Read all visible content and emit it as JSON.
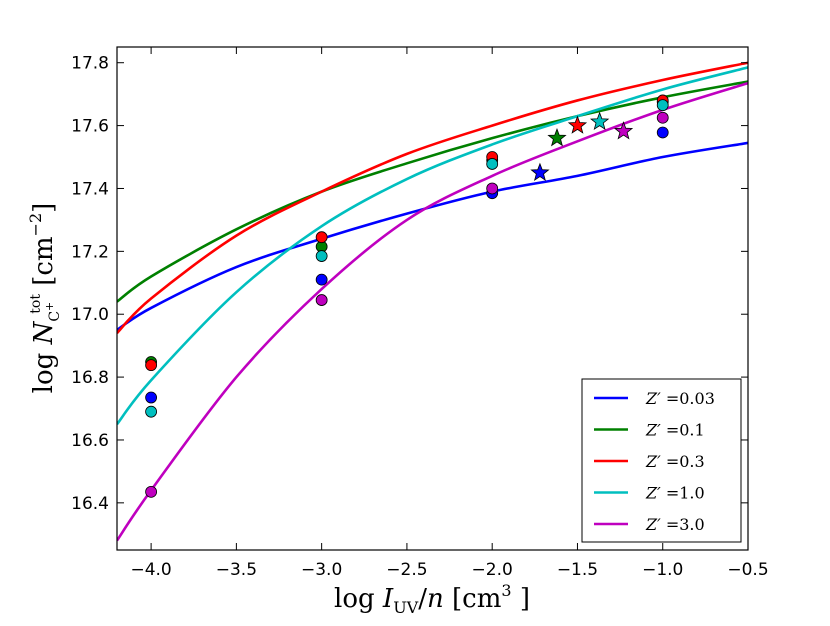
{
  "chart_data": {
    "type": "line",
    "title": "",
    "xlabel": "log I_UV/n [cm^3 ]",
    "ylabel": "log N_C+^tot [cm^-2]",
    "xlabel_parts": {
      "prefix": "log ",
      "var": "I",
      "sub": "UV",
      "mid": "/",
      "var2": "n",
      "unit": " [cm",
      "sup": "3",
      "close": " ]"
    },
    "ylabel_parts": {
      "prefix": "log ",
      "var": "N",
      "sub": "C",
      "subsup": "+",
      "sup": "tot",
      "unit": " [cm",
      "unitsup": "−2",
      "close": "]"
    },
    "xlim": [
      -4.2,
      -0.5
    ],
    "ylim": [
      16.25,
      17.85
    ],
    "x_ticks": [
      -4.0,
      -3.5,
      -3.0,
      -2.5,
      -2.0,
      -1.5,
      -1.0,
      -0.5
    ],
    "x_tick_labels": [
      "−4.0",
      "−3.5",
      "−3.0",
      "−2.5",
      "−2.0",
      "−1.5",
      "−1.0",
      "−0.5"
    ],
    "y_ticks": [
      16.4,
      16.6,
      16.8,
      17.0,
      17.2,
      17.4,
      17.6,
      17.8
    ],
    "y_tick_labels": [
      "16.4",
      "16.6",
      "16.8",
      "17.0",
      "17.2",
      "17.4",
      "17.6",
      "17.8"
    ],
    "grid": false,
    "legend_position": "lower-right",
    "legend_var": "Z′",
    "series": [
      {
        "name": "Z′ =0.03",
        "legend_value": "=0.03",
        "color": "#0000ff",
        "curve_x": [
          -4.2,
          -4.0,
          -3.5,
          -3.0,
          -2.5,
          -2.0,
          -1.5,
          -1.0,
          -0.5
        ],
        "curve_y": [
          16.95,
          17.02,
          17.15,
          17.24,
          17.32,
          17.39,
          17.44,
          17.5,
          17.545
        ],
        "points_x": [
          -4.0,
          -3.0,
          -2.0,
          -1.0
        ],
        "points_y": [
          16.735,
          17.11,
          17.385,
          17.578
        ],
        "star": {
          "x": -1.72,
          "y": 17.45
        }
      },
      {
        "name": "Z′ =0.1",
        "legend_value": "=0.1",
        "color": "#008000",
        "curve_x": [
          -4.2,
          -4.0,
          -3.5,
          -3.0,
          -2.5,
          -2.0,
          -1.5,
          -1.0,
          -0.5
        ],
        "curve_y": [
          17.04,
          17.12,
          17.27,
          17.39,
          17.48,
          17.56,
          17.63,
          17.69,
          17.74
        ],
        "points_x": [
          -4.0,
          -3.0,
          -2.0,
          -1.0
        ],
        "points_y": [
          16.848,
          17.215,
          17.49,
          17.675
        ],
        "star": {
          "x": -1.62,
          "y": 17.56
        }
      },
      {
        "name": "Z′ =0.3",
        "legend_value": "=0.3",
        "color": "#ff0000",
        "curve_x": [
          -4.2,
          -4.0,
          -3.5,
          -3.0,
          -2.5,
          -2.0,
          -1.5,
          -1.0,
          -0.5
        ],
        "curve_y": [
          16.94,
          17.05,
          17.25,
          17.39,
          17.51,
          17.6,
          17.68,
          17.745,
          17.8
        ],
        "points_x": [
          -4.0,
          -3.0,
          -2.0,
          -1.0
        ],
        "points_y": [
          16.838,
          17.245,
          17.5,
          17.68
        ],
        "star": {
          "x": -1.5,
          "y": 17.6
        }
      },
      {
        "name": "Z′ =1.0",
        "legend_value": "=1.0",
        "color": "#00bfbf",
        "curve_x": [
          -4.2,
          -4.0,
          -3.5,
          -3.0,
          -2.5,
          -2.0,
          -1.5,
          -1.0,
          -0.5
        ],
        "curve_y": [
          16.65,
          16.79,
          17.07,
          17.28,
          17.43,
          17.54,
          17.63,
          17.715,
          17.785
        ],
        "points_x": [
          -4.0,
          -3.0,
          -2.0,
          -1.0
        ],
        "points_y": [
          16.69,
          17.185,
          17.478,
          17.665
        ],
        "star": {
          "x": -1.37,
          "y": 17.612
        }
      },
      {
        "name": "Z′ =3.0",
        "legend_value": "=3.0",
        "color": "#bf00bf",
        "curve_x": [
          -4.2,
          -4.0,
          -3.5,
          -3.0,
          -2.5,
          -2.0,
          -1.5,
          -1.0,
          -0.5
        ],
        "curve_y": [
          16.28,
          16.44,
          16.8,
          17.08,
          17.3,
          17.44,
          17.55,
          17.65,
          17.735
        ],
        "points_x": [
          -4.0,
          -3.0,
          -2.0,
          -1.0
        ],
        "points_y": [
          16.435,
          17.045,
          17.4,
          17.625
        ],
        "star": {
          "x": -1.23,
          "y": 17.582
        }
      }
    ]
  }
}
